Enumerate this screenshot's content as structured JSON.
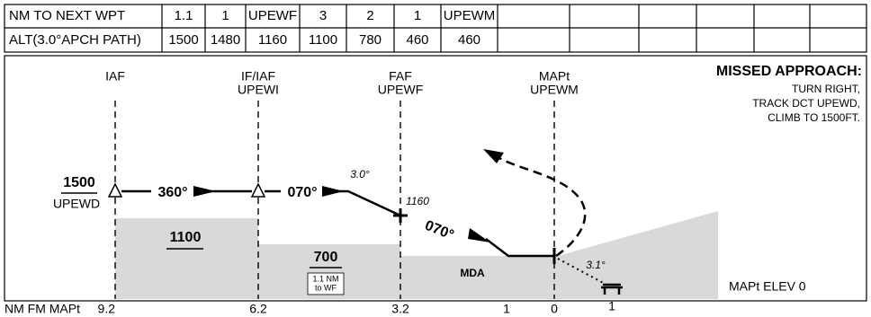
{
  "table": {
    "rows": [
      [
        "NM TO NEXT WPT",
        "1.1",
        "1",
        "UPEWF",
        "3",
        "2",
        "1",
        "UPEWM"
      ],
      [
        "ALT(3.0°APCH PATH)",
        "1500",
        "1480",
        "1160",
        "1100",
        "780",
        "460",
        "460"
      ]
    ]
  },
  "profile": {
    "fixes": [
      {
        "name": "IAF"
      },
      {
        "name": "IF/IAF",
        "ident": "UPEWI"
      },
      {
        "name": "FAF",
        "ident": "UPEWF"
      },
      {
        "name": "MAPt",
        "ident": "UPEWM"
      }
    ],
    "missed_approach": {
      "title": "MISSED APPROACH:",
      "lines": [
        "TURN RIGHT,",
        "TRACK DCT UPEWD,",
        "CLIMB TO 1500FT."
      ]
    },
    "annotations": {
      "iaf_altitude": "1500",
      "iaf_ident": "UPEWD",
      "course_1": "360°",
      "course_2": "070°",
      "course_3": "070°",
      "glide_angle": "3.0°",
      "faf_altitude": "1160",
      "terrain_1": "1100",
      "terrain_2": "700",
      "note_line_1": "1.1 NM",
      "note_line_2": "to WF",
      "mda": "MDA",
      "visual_angle": "3.1°",
      "mapt_elev": "MAPt ELEV 0"
    },
    "distance_scale": {
      "label": "NM FM MAPt",
      "ticks": [
        "9.2",
        "6.2",
        "3.2",
        "1",
        "0",
        "1"
      ]
    }
  }
}
